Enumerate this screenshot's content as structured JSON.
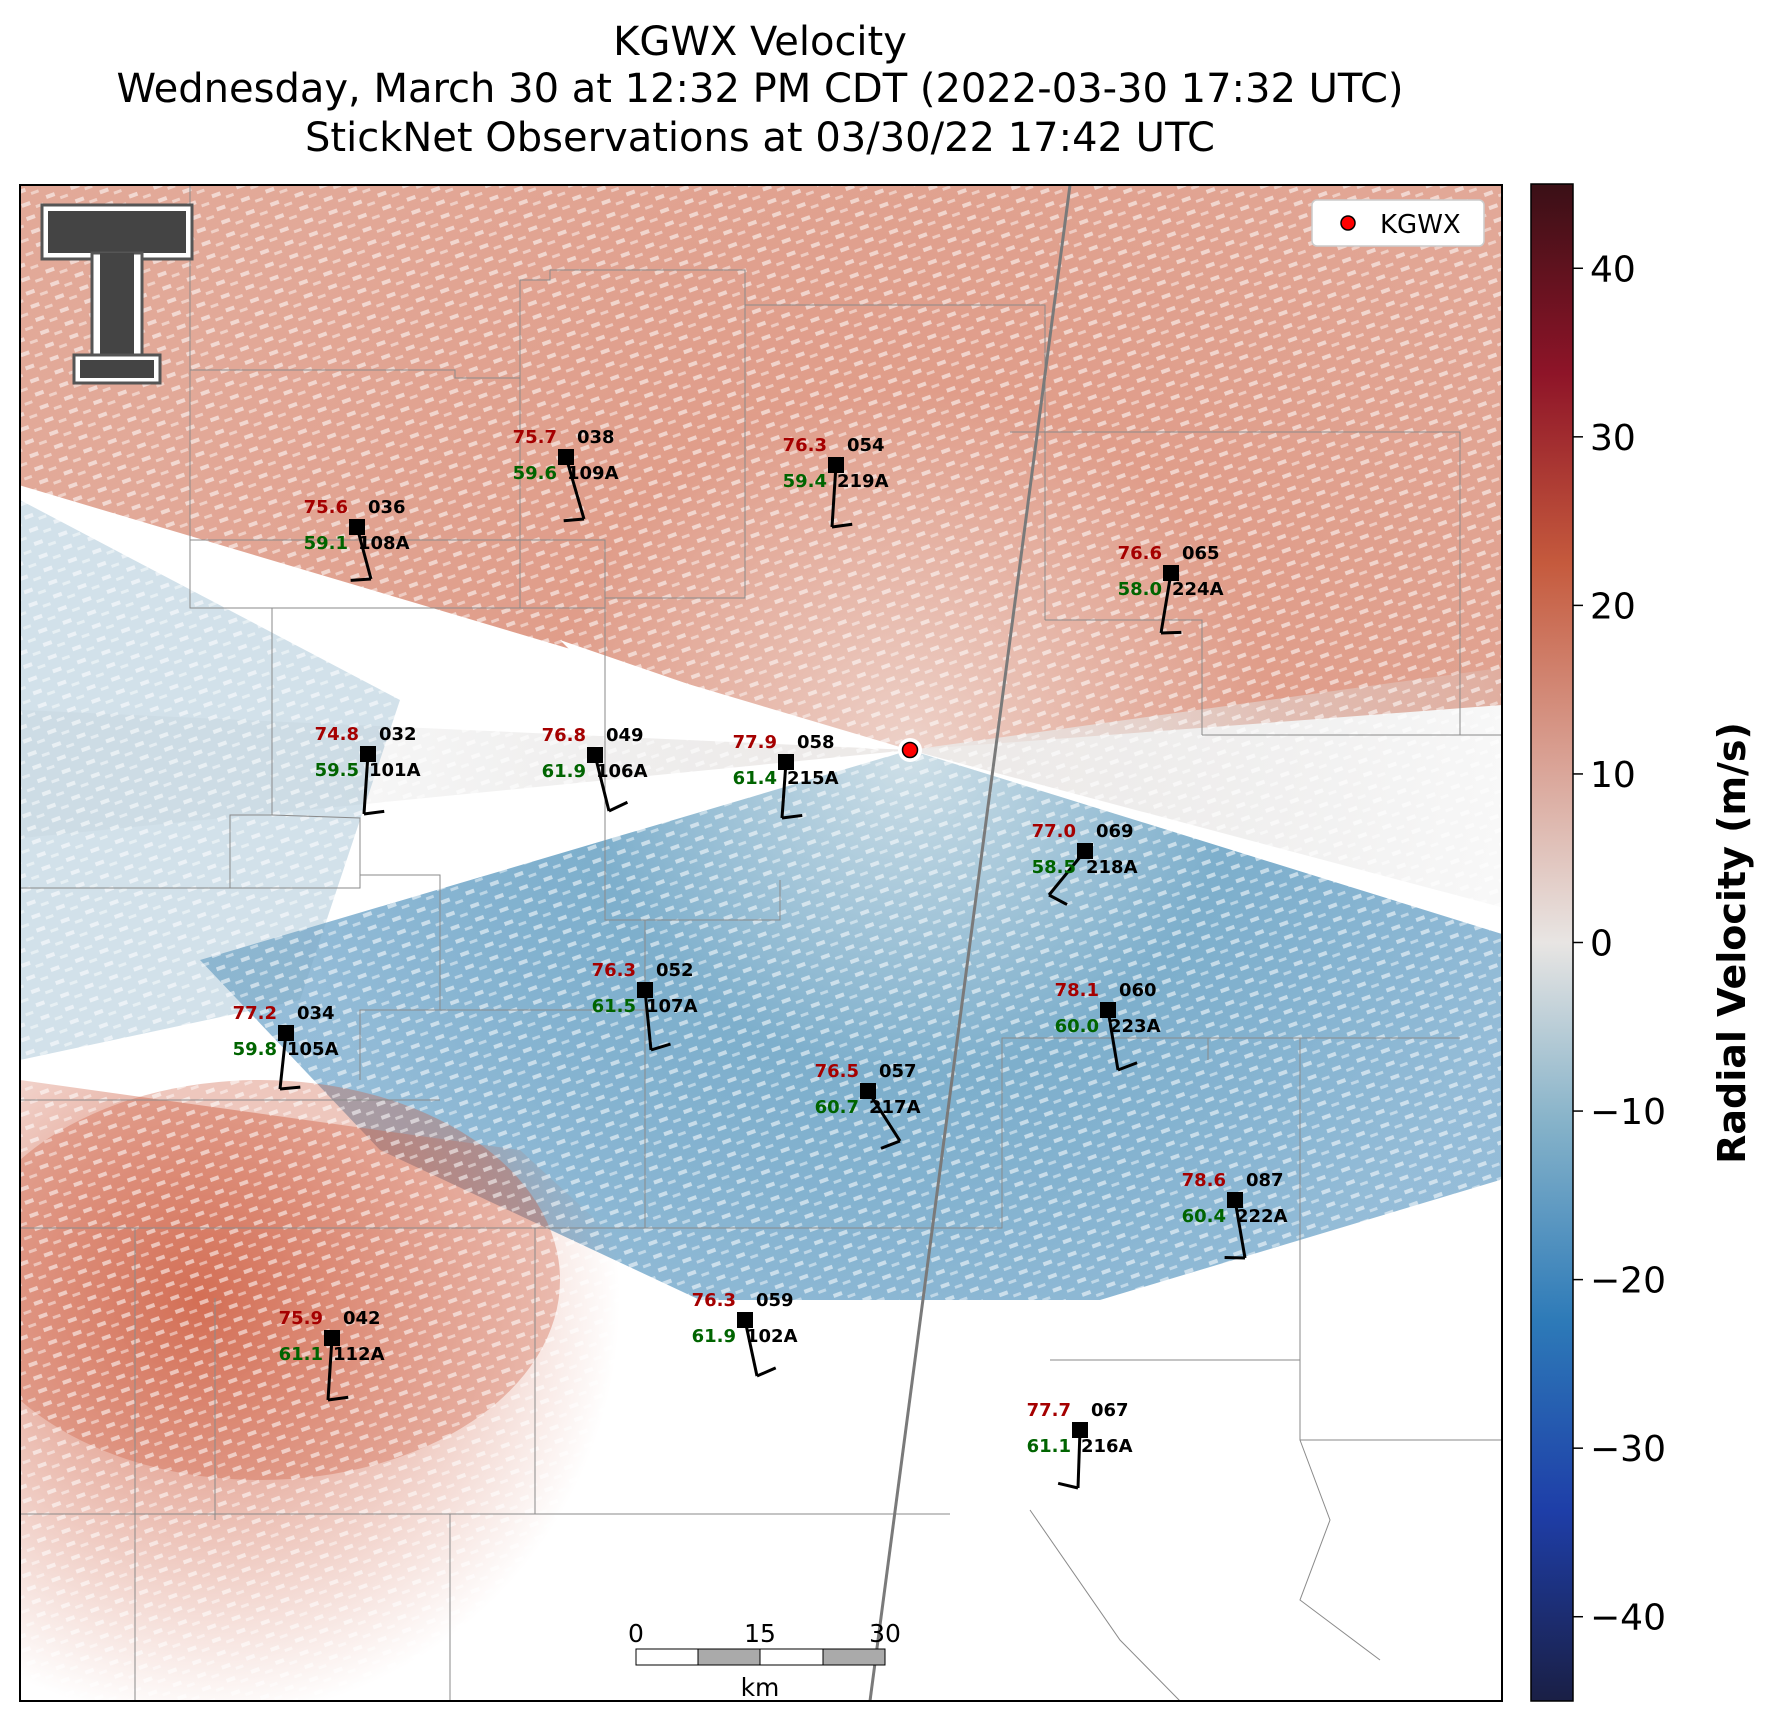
{
  "header": {
    "title_line1": "KGWX Velocity",
    "title_line2": "Wednesday, March 30 at 12:32 PM CDT (2022-03-30 17:32 UTC)",
    "title_line3": "StickNet Observations at 03/30/22 17:42 UTC"
  },
  "legend": {
    "label": "KGWX",
    "marker_color": "#ff0000"
  },
  "colorbar": {
    "label": "Radial Velocity (m/s)",
    "range": [
      -45,
      45
    ],
    "ticks": [
      40,
      30,
      20,
      10,
      0,
      -10,
      -20,
      -30,
      -40
    ],
    "tick_labels": [
      "40",
      "30",
      "20",
      "10",
      "0",
      "−10",
      "−20",
      "−30",
      "−40"
    ],
    "colors": [
      "#1a1f45",
      "#1e3ea8",
      "#2d7ab8",
      "#85b2c9",
      "#e8e5e3",
      "#d9a194",
      "#c55a3d",
      "#8e1428",
      "#3a1016"
    ]
  },
  "scale_bar": {
    "labels": [
      "0",
      "15",
      "30"
    ],
    "unit": "km"
  },
  "colors": {
    "temperature": "#a50000",
    "dewpoint": "#006400",
    "station_marker": "#000000"
  },
  "logo": {
    "name": "texas-tech-double-t-logo"
  },
  "stations": [
    {
      "temp": "75.7",
      "dew": "59.6",
      "id": "038",
      "probe": "109A"
    },
    {
      "temp": "76.3",
      "dew": "59.4",
      "id": "054",
      "probe": "219A"
    },
    {
      "temp": "75.6",
      "dew": "59.1",
      "id": "036",
      "probe": "108A"
    },
    {
      "temp": "76.6",
      "dew": "58.0",
      "id": "065",
      "probe": "224A"
    },
    {
      "temp": "74.8",
      "dew": "59.5",
      "id": "032",
      "probe": "101A"
    },
    {
      "temp": "76.8",
      "dew": "61.9",
      "id": "049",
      "probe": "106A"
    },
    {
      "temp": "77.9",
      "dew": "61.4",
      "id": "058",
      "probe": "215A"
    },
    {
      "temp": "77.0",
      "dew": "58.5",
      "id": "069",
      "probe": "218A"
    },
    {
      "temp": "76.3",
      "dew": "61.5",
      "id": "052",
      "probe": "107A"
    },
    {
      "temp": "77.2",
      "dew": "59.8",
      "id": "034",
      "probe": "105A"
    },
    {
      "temp": "78.1",
      "dew": "60.0",
      "id": "060",
      "probe": "223A"
    },
    {
      "temp": "76.5",
      "dew": "60.7",
      "id": "057",
      "probe": "217A"
    },
    {
      "temp": "78.6",
      "dew": "60.4",
      "id": "087",
      "probe": "222A"
    },
    {
      "temp": "76.3",
      "dew": "61.9",
      "id": "059",
      "probe": "102A"
    },
    {
      "temp": "75.9",
      "dew": "61.1",
      "id": "042",
      "probe": "112A"
    },
    {
      "temp": "77.7",
      "dew": "61.1",
      "id": "067",
      "probe": "216A"
    }
  ]
}
